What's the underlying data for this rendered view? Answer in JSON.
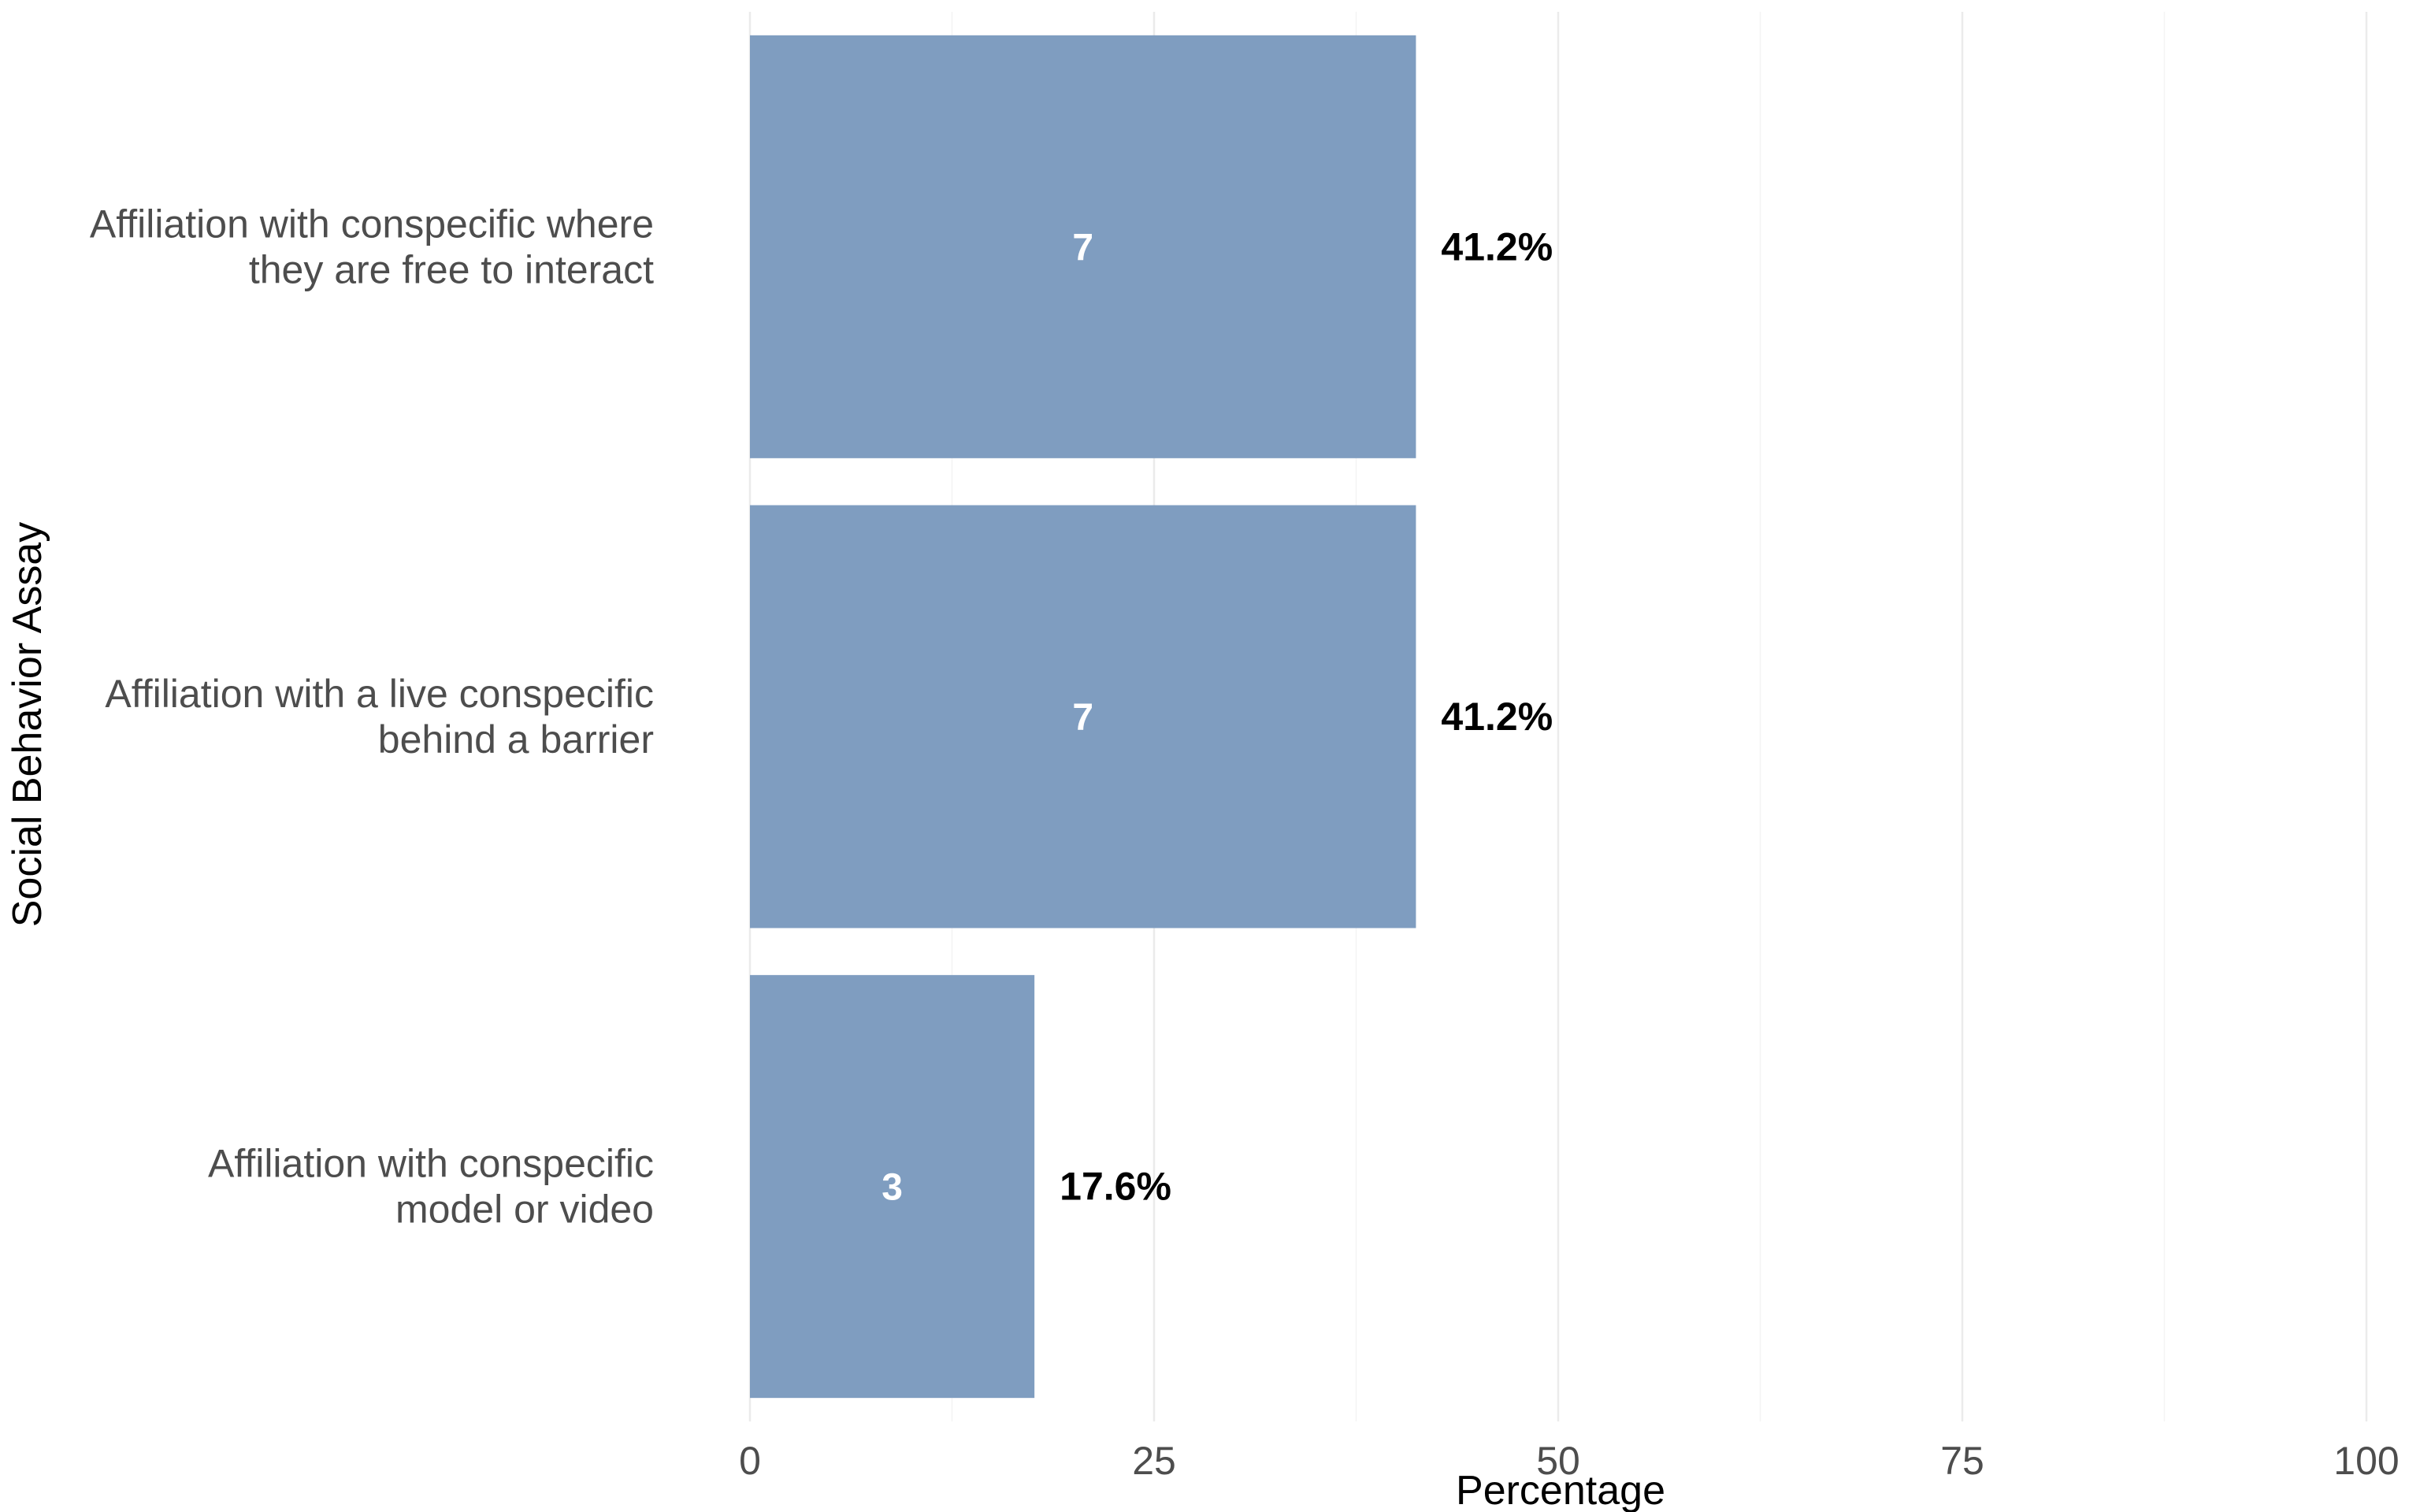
{
  "chart_data": {
    "type": "bar",
    "orientation": "horizontal",
    "xlabel": "Percentage",
    "ylabel": "Social Behavior Assay",
    "xlim": [
      0,
      100
    ],
    "xticks": [
      "0",
      "25",
      "50",
      "75",
      "100"
    ],
    "grid": true,
    "legend": "none",
    "bar_color": "#7f9dc0",
    "categories": [
      {
        "lines": [
          "Affiliation with conspecific where",
          "they are free to interact"
        ],
        "count_label": "7",
        "pct_label": "41.2%",
        "value": 41.2
      },
      {
        "lines": [
          "Affiliation with a live conspecific",
          "behind a barrier"
        ],
        "count_label": "7",
        "pct_label": "41.2%",
        "value": 41.2
      },
      {
        "lines": [
          "Affiliation with conspecific",
          "model or video"
        ],
        "count_label": "3",
        "pct_label": "17.6%",
        "value": 17.6
      }
    ]
  }
}
